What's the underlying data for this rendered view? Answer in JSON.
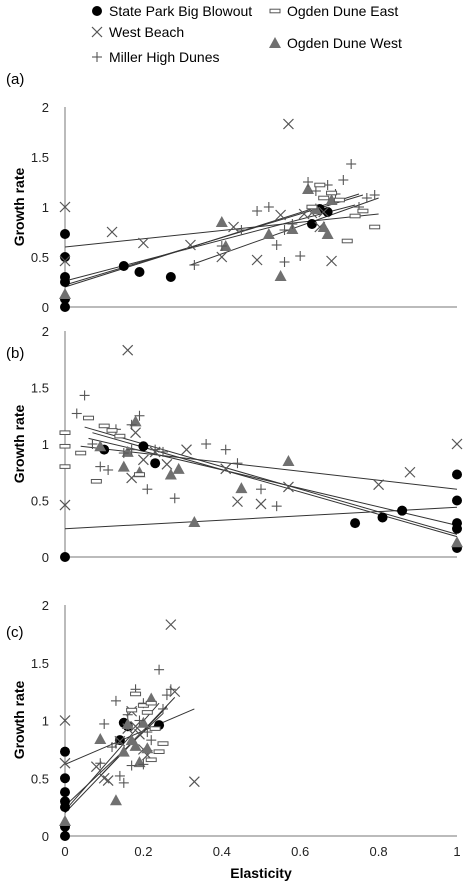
{
  "legend": [
    {
      "key": "sp",
      "label": "State Park Big Blowout",
      "marker": "circle"
    },
    {
      "key": "odE",
      "label": "Ogden Dune East",
      "marker": "dash-box"
    },
    {
      "key": "wb",
      "label": "West Beach",
      "marker": "x"
    },
    {
      "key": "odW",
      "label": "Ogden Dune West",
      "marker": "triangle"
    },
    {
      "key": "mhd",
      "label": "Miller High Dunes",
      "marker": "plus"
    }
  ],
  "colors": {
    "circle": "#000000",
    "triangle": "#707070",
    "x": "#555555",
    "plus": "#555555",
    "dash": "#555555",
    "line": "#333333",
    "axis": "#777777"
  },
  "chart_data": [
    {
      "panel": "(a)",
      "type": "scatter",
      "xlabel": "",
      "ylabel": "Growth rate",
      "xlim": [
        0,
        1
      ],
      "ylim": [
        0,
        2
      ],
      "yticks": [
        "0",
        "0.5",
        "1",
        "1.5",
        "2"
      ],
      "xticks": [],
      "series": [
        {
          "name": "State Park Big Blowout",
          "marker": "circle",
          "points": [
            [
              0,
              0.73
            ],
            [
              0,
              0.5
            ],
            [
              0,
              0.3
            ],
            [
              0,
              0.25
            ],
            [
              0,
              0.08
            ],
            [
              0,
              0.0
            ],
            [
              0.15,
              0.41
            ],
            [
              0.19,
              0.35
            ],
            [
              0.27,
              0.3
            ],
            [
              0.63,
              0.83
            ],
            [
              0.65,
              0.98
            ],
            [
              0.67,
              0.95
            ]
          ]
        },
        {
          "name": "West Beach",
          "marker": "x",
          "points": [
            [
              0,
              1.0
            ],
            [
              0,
              0.46
            ],
            [
              0.12,
              0.75
            ],
            [
              0.2,
              0.64
            ],
            [
              0.32,
              0.62
            ],
            [
              0.4,
              0.5
            ],
            [
              0.43,
              0.8
            ],
            [
              0.49,
              0.47
            ],
            [
              0.57,
              1.83
            ],
            [
              0.61,
              0.93
            ],
            [
              0.63,
              0.94
            ],
            [
              0.65,
              0.8
            ],
            [
              0.68,
              0.46
            ],
            [
              0.66,
              0.95
            ],
            [
              0.55,
              0.92
            ]
          ]
        },
        {
          "name": "Ogden Dune West",
          "marker": "triangle",
          "points": [
            [
              0,
              0.13
            ],
            [
              0.4,
              0.85
            ],
            [
              0.41,
              0.61
            ],
            [
              0.52,
              0.73
            ],
            [
              0.55,
              0.31
            ],
            [
              0.58,
              0.78
            ],
            [
              0.62,
              1.18
            ],
            [
              0.66,
              0.8
            ],
            [
              0.68,
              1.07
            ],
            [
              0.67,
              0.73
            ],
            [
              0.64,
              0.98
            ]
          ]
        },
        {
          "name": "Miller High Dunes",
          "marker": "plus",
          "points": [
            [
              0.33,
              0.42
            ],
            [
              0.4,
              0.61
            ],
            [
              0.45,
              0.77
            ],
            [
              0.49,
              0.96
            ],
            [
              0.52,
              1.0
            ],
            [
              0.54,
              0.62
            ],
            [
              0.56,
              0.45
            ],
            [
              0.58,
              0.83
            ],
            [
              0.6,
              0.51
            ],
            [
              0.62,
              1.25
            ],
            [
              0.64,
              1.16
            ],
            [
              0.67,
              1.22
            ],
            [
              0.69,
              1.13
            ],
            [
              0.71,
              1.27
            ],
            [
              0.73,
              1.43
            ],
            [
              0.75,
              1.0
            ],
            [
              0.77,
              1.09
            ],
            [
              0.79,
              1.12
            ],
            [
              0.56,
              0.77
            ]
          ]
        },
        {
          "name": "Ogden Dune East",
          "marker": "dash",
          "points": [
            [
              0.65,
              1.22
            ],
            [
              0.68,
              1.14
            ],
            [
              0.7,
              1.07
            ],
            [
              0.72,
              0.66
            ],
            [
              0.74,
              0.91
            ],
            [
              0.76,
              0.96
            ],
            [
              0.79,
              0.8
            ],
            [
              0.66,
              1.09
            ],
            [
              0.63,
              1.0
            ]
          ]
        }
      ],
      "trendlines": [
        [
          [
            0,
            0.6
          ],
          [
            0.8,
            0.93
          ]
        ],
        [
          [
            0,
            0.2
          ],
          [
            0.75,
            1.13
          ]
        ],
        [
          [
            0,
            0.22
          ],
          [
            0.76,
            1.12
          ]
        ],
        [
          [
            0,
            0.26
          ],
          [
            0.74,
            1.02
          ]
        ],
        [
          [
            0.32,
            0.42
          ],
          [
            0.8,
            1.09
          ]
        ]
      ]
    },
    {
      "panel": "(b)",
      "type": "scatter",
      "xlabel": "",
      "ylabel": "Growth rate",
      "xlim": [
        0,
        1
      ],
      "ylim": [
        0,
        2
      ],
      "yticks": [
        "0",
        "0.5",
        "1",
        "1.5",
        "2"
      ],
      "xticks": [],
      "series": [
        {
          "name": "State Park Big Blowout",
          "marker": "circle",
          "points": [
            [
              0,
              0.0
            ],
            [
              0.1,
              0.95
            ],
            [
              0.2,
              0.98
            ],
            [
              0.23,
              0.83
            ],
            [
              0.74,
              0.3
            ],
            [
              0.81,
              0.35
            ],
            [
              0.86,
              0.41
            ],
            [
              1,
              0.73
            ],
            [
              1,
              0.5
            ],
            [
              1,
              0.3
            ],
            [
              1,
              0.25
            ],
            [
              1,
              0.08
            ]
          ]
        },
        {
          "name": "West Beach",
          "marker": "x",
          "points": [
            [
              0,
              0.46
            ],
            [
              0.16,
              1.83
            ],
            [
              0.17,
              0.7
            ],
            [
              0.18,
              1.1
            ],
            [
              0.2,
              0.86
            ],
            [
              0.23,
              0.93
            ],
            [
              0.26,
              0.82
            ],
            [
              0.31,
              0.95
            ],
            [
              0.41,
              0.78
            ],
            [
              0.44,
              0.49
            ],
            [
              0.5,
              0.47
            ],
            [
              0.57,
              0.62
            ],
            [
              0.8,
              0.64
            ],
            [
              0.88,
              0.75
            ],
            [
              1,
              1.0
            ]
          ]
        },
        {
          "name": "Ogden Dune West",
          "marker": "triangle",
          "points": [
            [
              0.09,
              0.98
            ],
            [
              0.16,
              0.93
            ],
            [
              0.18,
              1.2
            ],
            [
              0.27,
              0.73
            ],
            [
              0.29,
              0.78
            ],
            [
              0.33,
              0.31
            ],
            [
              0.45,
              0.61
            ],
            [
              0.57,
              0.85
            ],
            [
              0.19,
              0.75
            ],
            [
              0.15,
              0.8
            ],
            [
              1,
              0.13
            ]
          ]
        },
        {
          "name": "Miller High Dunes",
          "marker": "plus",
          "points": [
            [
              0.03,
              1.27
            ],
            [
              0.05,
              1.43
            ],
            [
              0.07,
              1.0
            ],
            [
              0.09,
              0.8
            ],
            [
              0.11,
              0.77
            ],
            [
              0.13,
              1.13
            ],
            [
              0.15,
              0.92
            ],
            [
              0.17,
              1.17
            ],
            [
              0.19,
              1.25
            ],
            [
              0.21,
              0.6
            ],
            [
              0.23,
              0.95
            ],
            [
              0.25,
              0.93
            ],
            [
              0.28,
              0.52
            ],
            [
              0.36,
              1.0
            ],
            [
              0.41,
              0.95
            ],
            [
              0.44,
              0.83
            ],
            [
              0.5,
              0.6
            ],
            [
              0.54,
              0.45
            ],
            [
              0.17,
              0.95
            ]
          ]
        },
        {
          "name": "Ogden Dune East",
          "marker": "dash",
          "points": [
            [
              0,
              1.1
            ],
            [
              0,
              0.98
            ],
            [
              0,
              0.8
            ],
            [
              0.04,
              0.92
            ],
            [
              0.06,
              1.23
            ],
            [
              0.08,
              0.67
            ],
            [
              0.1,
              1.16
            ],
            [
              0.12,
              1.12
            ],
            [
              0.14,
              1.07
            ],
            [
              0.19,
              0.73
            ]
          ]
        }
      ],
      "trendlines": [
        [
          [
            0.04,
            0.98
          ],
          [
            1,
            0.6
          ]
        ],
        [
          [
            0.05,
            1.15
          ],
          [
            1,
            0.2
          ]
        ],
        [
          [
            0.07,
            1.1
          ],
          [
            1,
            0.18
          ]
        ],
        [
          [
            0.06,
            1.05
          ],
          [
            1,
            0.28
          ]
        ],
        [
          [
            0,
            0.25
          ],
          [
            1,
            0.44
          ]
        ]
      ]
    },
    {
      "panel": "(c)",
      "type": "scatter",
      "xlabel": "Elasticity",
      "ylabel": "Growth rate",
      "xlim": [
        0,
        1
      ],
      "ylim": [
        0,
        2
      ],
      "yticks": [
        "0",
        "0.5",
        "1",
        "1.5",
        "2"
      ],
      "xticks": [
        "0",
        "0.2",
        "0.4",
        "0.6",
        "0.8",
        "1"
      ],
      "series": [
        {
          "name": "State Park Big Blowout",
          "marker": "circle",
          "points": [
            [
              0,
              0.73
            ],
            [
              0,
              0.5
            ],
            [
              0,
              0.38
            ],
            [
              0,
              0.3
            ],
            [
              0,
              0.25
            ],
            [
              0,
              0.08
            ],
            [
              0,
              0.0
            ],
            [
              0.15,
              0.98
            ],
            [
              0.14,
              0.83
            ],
            [
              0.16,
              0.95
            ],
            [
              0.24,
              0.96
            ]
          ]
        },
        {
          "name": "West Beach",
          "marker": "x",
          "points": [
            [
              0,
              1.0
            ],
            [
              0,
              0.63
            ],
            [
              0.08,
              0.6
            ],
            [
              0.1,
              0.5
            ],
            [
              0.11,
              0.48
            ],
            [
              0.14,
              0.82
            ],
            [
              0.17,
              1.08
            ],
            [
              0.18,
              0.95
            ],
            [
              0.2,
              0.75
            ],
            [
              0.21,
              0.7
            ],
            [
              0.27,
              1.83
            ],
            [
              0.28,
              1.25
            ],
            [
              0.33,
              0.47
            ],
            [
              0.16,
              0.93
            ],
            [
              0.19,
              0.88
            ]
          ]
        },
        {
          "name": "Ogden Dune West",
          "marker": "triangle",
          "points": [
            [
              0,
              0.13
            ],
            [
              0.09,
              0.84
            ],
            [
              0.13,
              0.31
            ],
            [
              0.15,
              0.73
            ],
            [
              0.16,
              0.97
            ],
            [
              0.18,
              0.78
            ],
            [
              0.21,
              0.76
            ],
            [
              0.22,
              1.19
            ],
            [
              0.19,
              0.64
            ],
            [
              0.2,
              0.98
            ],
            [
              0.17,
              0.83
            ]
          ]
        },
        {
          "name": "Miller High Dunes",
          "marker": "plus",
          "points": [
            [
              0.09,
              0.63
            ],
            [
              0.1,
              0.97
            ],
            [
              0.12,
              0.77
            ],
            [
              0.13,
              1.17
            ],
            [
              0.14,
              0.52
            ],
            [
              0.15,
              0.46
            ],
            [
              0.16,
              1.05
            ],
            [
              0.17,
              0.61
            ],
            [
              0.18,
              1.27
            ],
            [
              0.19,
              1.0
            ],
            [
              0.2,
              1.15
            ],
            [
              0.21,
              0.9
            ],
            [
              0.22,
              0.83
            ],
            [
              0.24,
              1.44
            ],
            [
              0.25,
              1.1
            ],
            [
              0.26,
              1.22
            ],
            [
              0.27,
              1.27
            ],
            [
              0.13,
              0.8
            ],
            [
              0.2,
              0.62
            ]
          ]
        },
        {
          "name": "Ogden Dune East",
          "marker": "dash",
          "points": [
            [
              0.18,
              1.23
            ],
            [
              0.2,
              1.13
            ],
            [
              0.21,
              1.07
            ],
            [
              0.22,
              0.66
            ],
            [
              0.23,
              0.93
            ],
            [
              0.24,
              0.73
            ],
            [
              0.17,
              1.09
            ],
            [
              0.25,
              0.8
            ],
            [
              0.22,
              1.15
            ]
          ]
        }
      ],
      "trendlines": [
        [
          [
            0,
            0.62
          ],
          [
            0.33,
            1.1
          ]
        ],
        [
          [
            0,
            0.2
          ],
          [
            0.26,
            1.12
          ]
        ],
        [
          [
            0,
            0.22
          ],
          [
            0.24,
            1.15
          ]
        ],
        [
          [
            0,
            0.26
          ],
          [
            0.25,
            1.06
          ]
        ],
        [
          [
            0.09,
            0.52
          ],
          [
            0.28,
            1.2
          ]
        ]
      ]
    }
  ]
}
